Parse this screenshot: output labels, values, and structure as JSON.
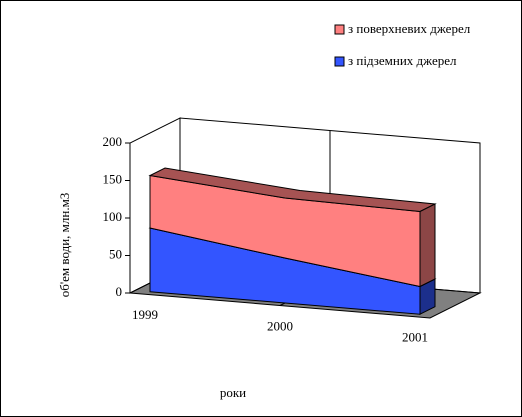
{
  "chart_data": {
    "type": "area3d",
    "x_label": "роки",
    "y_label": "об'ем води, млн.м3",
    "categories": [
      "1999",
      "2000",
      "2001"
    ],
    "series": [
      {
        "name": "з підземних джерел",
        "color": "#3355ff",
        "values": [
          85,
          60,
          37
        ]
      },
      {
        "name": "з поверхневих джерел",
        "color": "#ff8080",
        "values": [
          70,
          80,
          100
        ]
      }
    ],
    "stacked": true,
    "ylim": [
      0,
      200
    ],
    "yticks": [
      0,
      50,
      100,
      150,
      200
    ]
  }
}
